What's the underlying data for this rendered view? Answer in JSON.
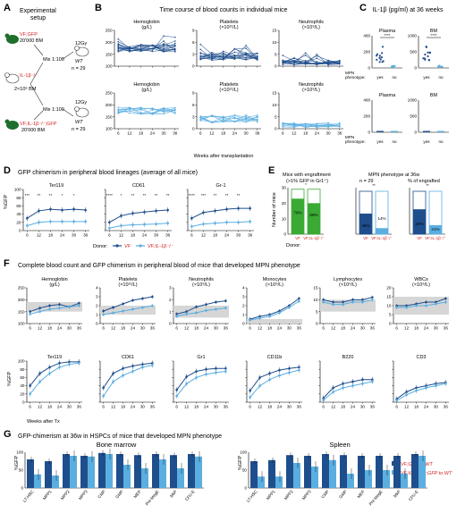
{
  "colors": {
    "dark": "#1f4e8c",
    "light": "#5aaee0",
    "green": "#3aaa35",
    "gray": "#d6d6d6",
    "red": "#d62020",
    "greenText": "#2e8b2e",
    "mouse": "#1e6f2b"
  },
  "panelA": {
    "letter": "A",
    "title_line1": "Experimental",
    "title_line2": "setup",
    "donor_top": "VF;GFP",
    "cells_top": "20'000 BM",
    "mix": "Mix 1:100",
    "irr_top": "12Gy",
    "wt": "WT",
    "n_top": "n = 29",
    "il1b": "IL-1β⁻/⁻",
    "cells_mid": "2×10⁶ BM",
    "irr_bottom": "12Gy",
    "n_bottom": "n = 29",
    "donor_bottom": "VF;IL-1β⁻/⁻;GFP",
    "cells_bottom": "20'000 BM"
  },
  "panelB": {
    "letter": "B",
    "title": "Time course of blood counts in individual mice",
    "xlabel": "Weeks after transplantation",
    "titles": [
      "Hemoglobin",
      "Platelets",
      "Neutrophils"
    ],
    "units": [
      "(g/L)",
      "(×10¹²/L)",
      "(×10⁹/L)"
    ],
    "yticks": [
      [
        "100",
        "150",
        "200",
        "250"
      ],
      [
        "0",
        "3",
        "6",
        "9"
      ],
      [
        "0",
        "5",
        "10",
        "15"
      ]
    ],
    "xticks": [
      "6",
      "12",
      "18",
      "24",
      "30",
      "36"
    ]
  },
  "panelC": {
    "letter": "C",
    "title": "IL-1β (pg/ml) at 36 weeks",
    "labels": [
      "Plasma",
      "BM",
      "Plasma",
      "BM"
    ],
    "yticks_plasma": [
      "0",
      "200",
      "400"
    ],
    "yticks_bm": [
      "0",
      "500",
      "1000"
    ],
    "mpn": "MPN",
    "phenotype": "phenotype:",
    "yes": "yes",
    "no": "no",
    "sig": "****"
  },
  "panelD": {
    "letter": "D",
    "title": "GFP chimerism in peripheral blood lineages (average of all mice)",
    "titles": [
      "Ter119",
      "CD61",
      "Gr-1"
    ],
    "ylabel": "%GFP",
    "yticks": [
      "0",
      "20",
      "40",
      "60",
      "80",
      "100"
    ],
    "xticks": [
      "6",
      "12",
      "18",
      "24",
      "30",
      "36"
    ],
    "donor": "Donor:",
    "leg_vf": "VF",
    "leg_vfil": "VF;IL-1β⁻/⁻",
    "stars": [
      [
        "***",
        "**",
        "**",
        "*",
        "*",
        ""
      ],
      [
        "****",
        "*",
        "**",
        "**",
        "**",
        "**"
      ],
      [
        "****",
        "***",
        "**",
        "**",
        "**",
        ""
      ]
    ]
  },
  "panelE": {
    "letter": "E",
    "title1a": "Mice with engraftment",
    "title1b": "(>1% GFP in Gr1⁺)",
    "title2a": "MPN phenotype at 36w",
    "title2b": "n = 29",
    "title3": "% of engrafted",
    "ylabel": "Number of mice",
    "n": "n",
    "donor": "Donor:",
    "cat_vf": "VF",
    "cat_vfil": "VF;IL-1β⁻/⁻",
    "sig1": "*",
    "sig2": "**",
    "sig3": "**",
    "val_red": "29",
    "val_grn": "29",
    "pct_grn1": "79%",
    "pct_grn2": "69%",
    "pct3_dark": "48%",
    "pct3_light": "14%",
    "pct3b_dark": "24%",
    "pct3b_light": "21%",
    "yticks1": [
      "0",
      "10",
      "20",
      "30"
    ]
  },
  "panelF": {
    "letter": "F",
    "title": "Complete blood count and GFP chimerism in peripheral blood of mice that developed MPN phenotype",
    "row1": [
      "Hemoglobin",
      "Platelets",
      "Neutrophils",
      "Monocytes",
      "Lymphocytes",
      "WBCs"
    ],
    "row1units": [
      "(g/L)",
      "(×10¹²/L)",
      "(×10⁹/L)",
      "(×10⁹/L)",
      "(×10⁹/L)",
      "(×10⁹/L)"
    ],
    "row1yticks": [
      [
        "100",
        "150",
        "200",
        "250"
      ],
      [
        "0",
        "1",
        "2",
        "3",
        "4"
      ],
      [
        "0",
        "1",
        "2",
        "3"
      ],
      [
        "0",
        "1",
        "2",
        "3",
        "4"
      ],
      [
        "0",
        "5",
        "10",
        "15"
      ],
      [
        "0",
        "5",
        "10",
        "15",
        "20"
      ]
    ],
    "row2": [
      "Ter119",
      "CD61",
      "Gr1",
      "CD11b",
      "B220",
      "CD3"
    ],
    "ylabel": "%GFP",
    "yticks2": [
      "0",
      "20",
      "40",
      "60",
      "80",
      "100"
    ],
    "xticks": [
      "6",
      "12",
      "18",
      "24",
      "30",
      "36"
    ],
    "xlabel": "Weeks after Tx"
  },
  "panelG": {
    "letter": "G",
    "title": "GFP-chimerism at 36w in HSPCs of mice that developed MPN phenotype",
    "sub_bm": "Bone marrow",
    "sub_sp": "Spleen",
    "ylabel": "%GFP",
    "yticks": [
      "0",
      "50",
      "100"
    ],
    "categories": [
      "LT-HSC",
      "MPP1",
      "MPP2",
      "MPP3",
      "CMP",
      "GMP",
      "MEP",
      "Pre-MegE",
      "MkP",
      "CFU-E"
    ],
    "leg1": "VF;GFP to WT",
    "leg2": "VF;IL-1β⁻/⁻;GFP to WT"
  },
  "chart_data": [
    {
      "type": "line",
      "panel": "D",
      "title": "Ter119",
      "x": [
        6,
        12,
        18,
        24,
        30,
        36
      ],
      "series": [
        {
          "name": "VF",
          "values": [
            30,
            48,
            52,
            50,
            52,
            50
          ]
        },
        {
          "name": "VF;IL-1β⁻/⁻",
          "values": [
            12,
            20,
            22,
            22,
            22,
            22
          ]
        }
      ],
      "ylabel": "%GFP",
      "ylim": [
        0,
        100
      ]
    },
    {
      "type": "line",
      "panel": "D",
      "title": "CD61",
      "x": [
        6,
        12,
        18,
        24,
        30,
        36
      ],
      "series": [
        {
          "name": "VF",
          "values": [
            20,
            36,
            42,
            45,
            48,
            50
          ]
        },
        {
          "name": "VF;IL-1β⁻/⁻",
          "values": [
            6,
            12,
            14,
            15,
            16,
            18
          ]
        }
      ],
      "ylabel": "%GFP",
      "ylim": [
        0,
        100
      ]
    },
    {
      "type": "line",
      "panel": "D",
      "title": "Gr-1",
      "x": [
        6,
        12,
        18,
        24,
        30,
        36
      ],
      "series": [
        {
          "name": "VF",
          "values": [
            30,
            44,
            48,
            52,
            54,
            54
          ]
        },
        {
          "name": "VF;IL-1β⁻/⁻",
          "values": [
            10,
            16,
            18,
            20,
            20,
            22
          ]
        }
      ],
      "ylabel": "%GFP",
      "ylim": [
        0,
        100
      ]
    },
    {
      "type": "bar",
      "panel": "G",
      "subtitle": "Bone marrow",
      "categories": [
        "LT-HSC",
        "MPP1",
        "MPP2",
        "MPP3",
        "CMP",
        "GMP",
        "MEP",
        "Pre-MegE",
        "MkP",
        "CFU-E"
      ],
      "series": [
        {
          "name": "VF;GFP to WT",
          "values": [
            80,
            75,
            95,
            90,
            98,
            95,
            92,
            95,
            92,
            95
          ]
        },
        {
          "name": "VF;IL-1β⁻/⁻;GFP to WT",
          "values": [
            38,
            35,
            90,
            88,
            95,
            65,
            55,
            80,
            55,
            88
          ]
        }
      ],
      "ylabel": "%GFP",
      "ylim": [
        0,
        100
      ]
    },
    {
      "type": "bar",
      "panel": "G",
      "subtitle": "Spleen",
      "categories": [
        "LT-HSC",
        "MPP1",
        "MPP2",
        "MPP3",
        "CMP",
        "GMP",
        "MEP",
        "Pre-MegE",
        "MkP",
        "CFU-E"
      ],
      "series": [
        {
          "name": "VF;GFP to WT",
          "values": [
            75,
            78,
            92,
            90,
            95,
            92,
            90,
            90,
            90,
            95
          ]
        },
        {
          "name": "VF;IL-1β⁻/⁻;GFP to WT",
          "values": [
            32,
            32,
            70,
            60,
            78,
            40,
            50,
            50,
            40,
            90
          ]
        }
      ],
      "ylabel": "%GFP",
      "ylim": [
        0,
        100
      ]
    }
  ]
}
